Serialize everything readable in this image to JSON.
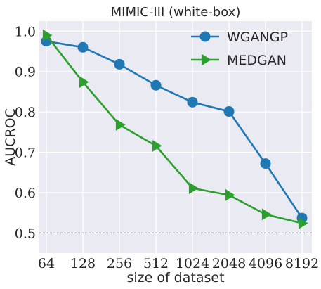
{
  "chart_data": {
    "type": "line",
    "title": "MIMIC-III (white-box)",
    "xlabel": "size of dataset",
    "ylabel": "AUCROC",
    "categories": [
      "64",
      "128",
      "256",
      "512",
      "1024",
      "2048",
      "4096",
      "8192"
    ],
    "ylim": [
      0.45,
      1.025
    ],
    "yticks": [
      "0.5",
      "0.6",
      "0.7",
      "0.8",
      "0.9",
      "1.0"
    ],
    "reference_line": 0.5,
    "grid": true,
    "legend_position": "top-right",
    "series": [
      {
        "name": "WGANGP",
        "marker": "circle",
        "color": "#1f77b4",
        "values": [
          0.975,
          0.96,
          0.918,
          0.866,
          0.824,
          0.801,
          0.672,
          0.537
        ]
      },
      {
        "name": "MEDGAN",
        "marker": "triangle-right",
        "color": "#2ca02c",
        "values": [
          0.99,
          0.874,
          0.768,
          0.716,
          0.611,
          0.594,
          0.546,
          0.524
        ]
      }
    ],
    "colors": {
      "plot_background": "#eaeaf2",
      "grid": "#ffffff",
      "reference_line": "#808080"
    }
  }
}
